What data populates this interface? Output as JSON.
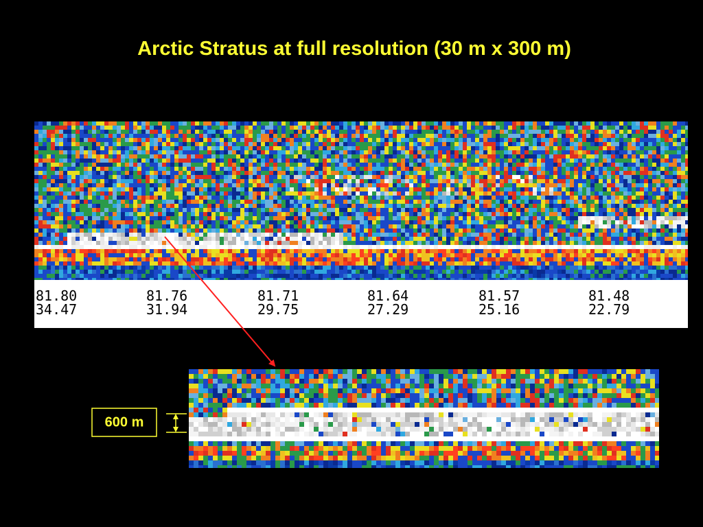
{
  "title": "Arctic Stratus at full resolution (30 m x 300 m)",
  "profile": {
    "ticks": [
      {
        "lat": "81.80",
        "lon": "34.47"
      },
      {
        "lat": "81.76",
        "lon": "31.94"
      },
      {
        "lat": "81.71",
        "lon": "29.75"
      },
      {
        "lat": "81.64",
        "lon": "27.29"
      },
      {
        "lat": "81.57",
        "lon": "25.16"
      },
      {
        "lat": "81.48",
        "lon": "22.79"
      }
    ]
  },
  "inset": {
    "scale_label": "600 m"
  }
}
